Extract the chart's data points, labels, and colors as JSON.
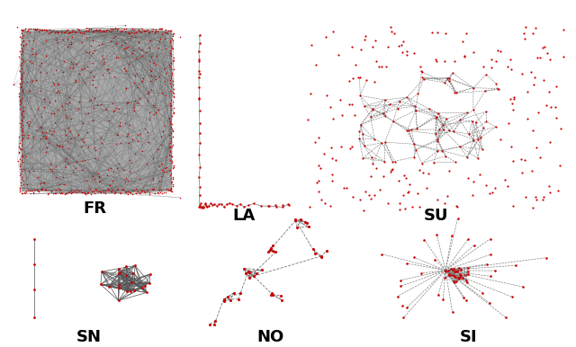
{
  "background_color": "#ffffff",
  "node_color": "#cc0000",
  "edge_color_dark": "#555555",
  "edge_color_light": "#888888",
  "label_fontsize": 13,
  "label_fontweight": "bold",
  "labels": [
    "FR",
    "LA",
    "SU",
    "SN",
    "NO",
    "SI"
  ],
  "fr_gray_fill": "#999999",
  "fr_gray_alpha": 0.85
}
